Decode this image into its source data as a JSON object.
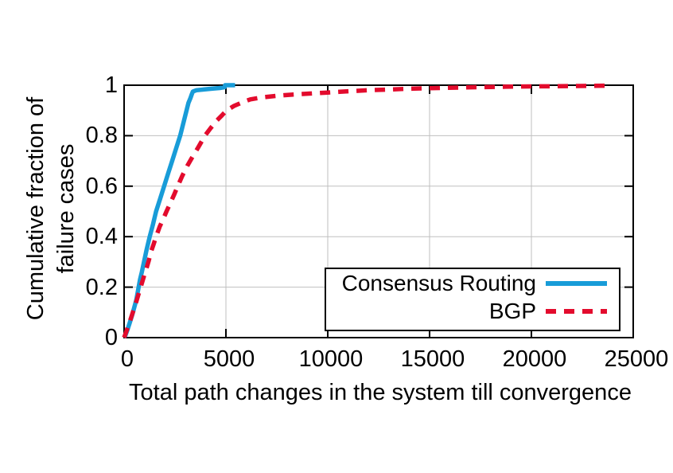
{
  "chart_data": {
    "type": "line",
    "title": "",
    "xlabel": "Total path changes in the system till convergence",
    "ylabel_lines": [
      "Cumulative fraction of",
      "failure cases"
    ],
    "xlim": [
      0,
      25000
    ],
    "ylim": [
      0,
      1
    ],
    "xticks": [
      0,
      5000,
      10000,
      15000,
      20000,
      25000
    ],
    "yticks": [
      0,
      0.2,
      0.4,
      0.6,
      0.8,
      1
    ],
    "grid": true,
    "grid_color": "#bfbfbf",
    "legend_position": "inside-bottom-right",
    "series": [
      {
        "name": "Consensus Routing",
        "color": "#189cd8",
        "style": "solid",
        "points": [
          [
            0,
            0
          ],
          [
            70,
            0.01
          ],
          [
            160,
            0.03
          ],
          [
            280,
            0.06
          ],
          [
            400,
            0.09
          ],
          [
            500,
            0.12
          ],
          [
            600,
            0.15
          ],
          [
            690,
            0.19
          ],
          [
            780,
            0.23
          ],
          [
            870,
            0.26
          ],
          [
            975,
            0.3
          ],
          [
            1110,
            0.35
          ],
          [
            1258,
            0.4
          ],
          [
            1420,
            0.45
          ],
          [
            1572,
            0.5
          ],
          [
            1770,
            0.55
          ],
          [
            1966,
            0.6
          ],
          [
            2160,
            0.65
          ],
          [
            2359,
            0.7
          ],
          [
            2556,
            0.75
          ],
          [
            2752,
            0.8
          ],
          [
            2910,
            0.85
          ],
          [
            3066,
            0.9
          ],
          [
            3160,
            0.93
          ],
          [
            3263,
            0.95
          ],
          [
            3330,
            0.965
          ],
          [
            3380,
            0.975
          ],
          [
            3550,
            0.98
          ],
          [
            3900,
            0.983
          ],
          [
            4300,
            0.986
          ],
          [
            4700,
            0.989
          ],
          [
            4930,
            0.992
          ],
          [
            4960,
            1.0
          ],
          [
            5450,
            1.0
          ]
        ]
      },
      {
        "name": "BGP",
        "color": "#e30b2d",
        "style": "dashed",
        "points": [
          [
            0,
            0
          ],
          [
            90,
            0.02
          ],
          [
            200,
            0.045
          ],
          [
            330,
            0.075
          ],
          [
            470,
            0.11
          ],
          [
            610,
            0.145
          ],
          [
            740,
            0.18
          ],
          [
            870,
            0.215
          ],
          [
            1000,
            0.25
          ],
          [
            1100,
            0.275
          ],
          [
            1210,
            0.305
          ],
          [
            1320,
            0.34
          ],
          [
            1450,
            0.37
          ],
          [
            1572,
            0.4
          ],
          [
            1750,
            0.44
          ],
          [
            1920,
            0.47
          ],
          [
            2083,
            0.5
          ],
          [
            2280,
            0.535
          ],
          [
            2450,
            0.565
          ],
          [
            2634,
            0.6
          ],
          [
            2850,
            0.64
          ],
          [
            3100,
            0.68
          ],
          [
            3350,
            0.715
          ],
          [
            3650,
            0.755
          ],
          [
            3970,
            0.8
          ],
          [
            4250,
            0.83
          ],
          [
            4550,
            0.86
          ],
          [
            4800,
            0.88
          ],
          [
            5030,
            0.9
          ],
          [
            5400,
            0.918
          ],
          [
            5800,
            0.932
          ],
          [
            6200,
            0.944
          ],
          [
            6800,
            0.952
          ],
          [
            7500,
            0.958
          ],
          [
            8300,
            0.963
          ],
          [
            9100,
            0.967
          ],
          [
            10000,
            0.971
          ],
          [
            11000,
            0.976
          ],
          [
            12000,
            0.98
          ],
          [
            13000,
            0.983
          ],
          [
            14000,
            0.986
          ],
          [
            15000,
            0.988
          ],
          [
            16500,
            0.991
          ],
          [
            18000,
            0.993
          ],
          [
            19500,
            0.995
          ],
          [
            21000,
            0.996
          ],
          [
            22300,
            0.997
          ],
          [
            23700,
            0.998
          ]
        ]
      }
    ]
  }
}
